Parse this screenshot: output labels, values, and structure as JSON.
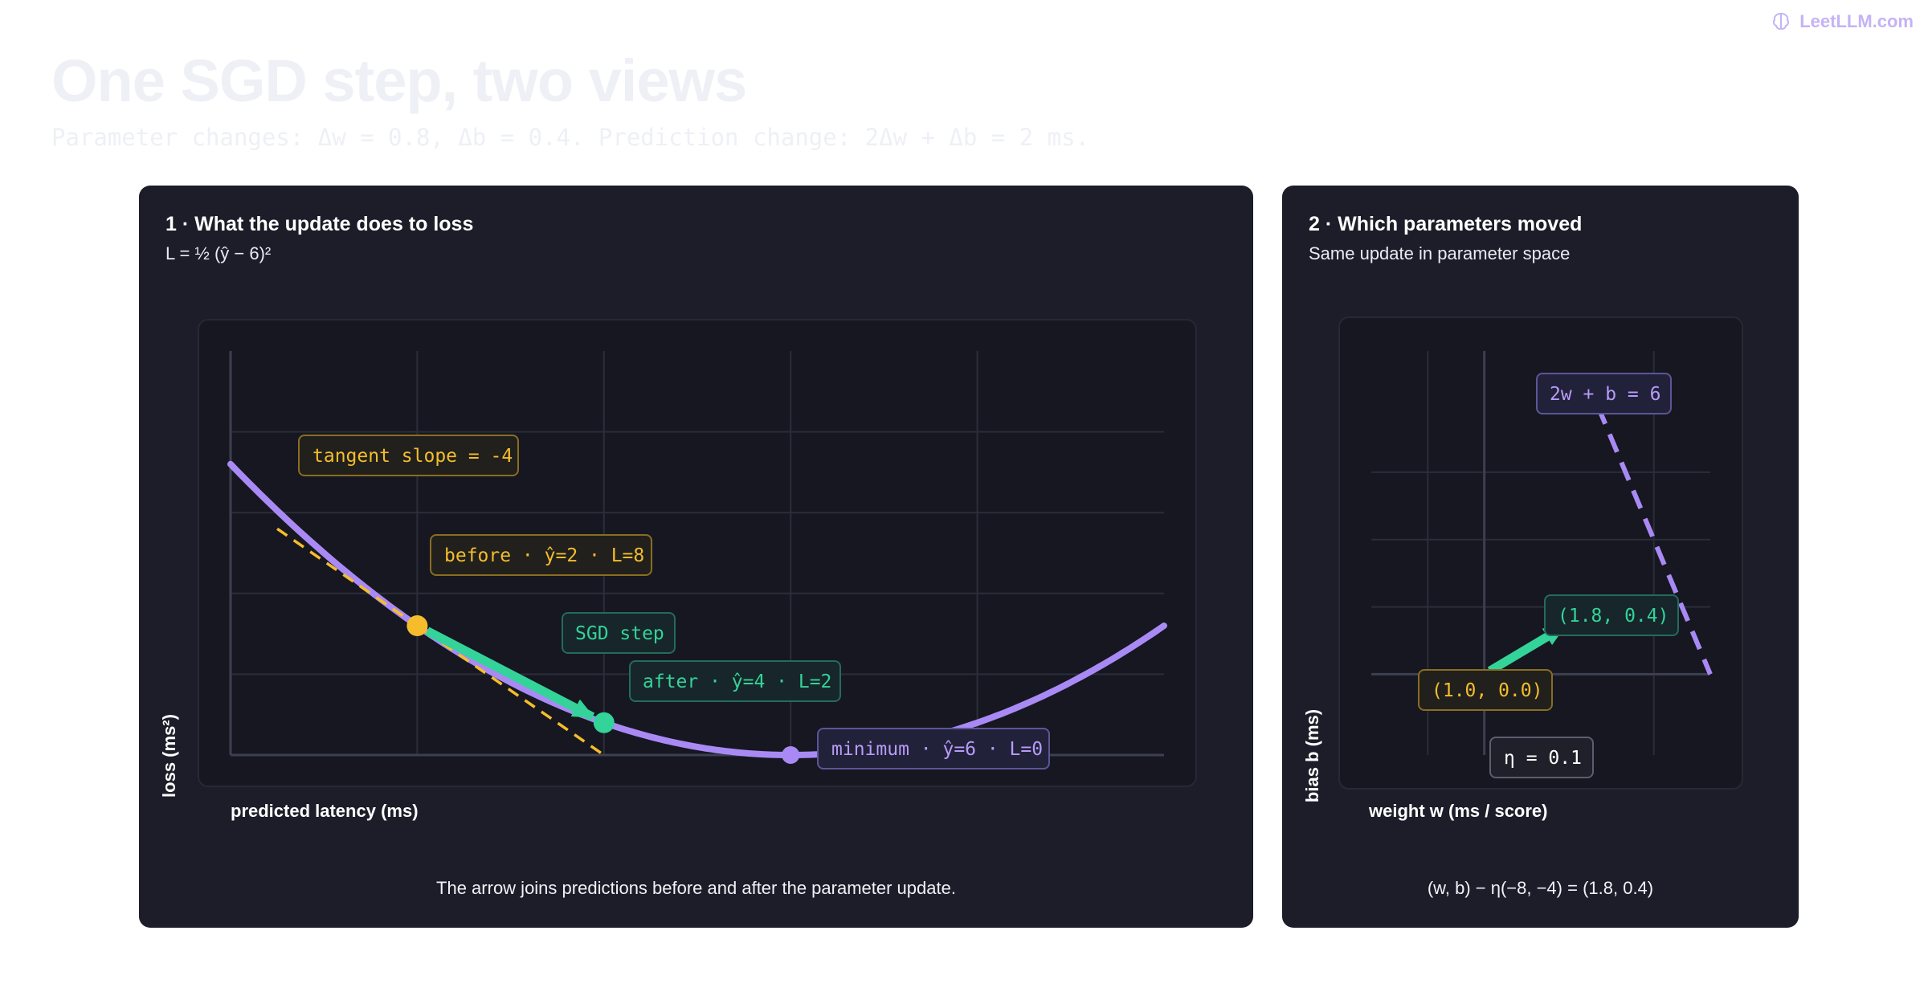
{
  "brand": {
    "text": "LeetLLM.com",
    "icon": "brain-icon",
    "color": "#c5b3f6"
  },
  "title": "One SGD step, two views",
  "subtitle": "Parameter changes: Δw = 0.8, Δb = 0.4. Prediction change: 2Δw + Δb = 2 ms.",
  "colors": {
    "curve": "#a98af5",
    "tangent": "#f5bd2c",
    "step": "#34d399",
    "panel": "#1c1d28",
    "plot_bg": "#161720",
    "grid": "#2a2d3b"
  },
  "panel_loss": {
    "title": "1 · What the update does to loss",
    "formula": "L = ½ (ŷ − 6)²",
    "xlabel": "predicted latency (ms)",
    "ylabel": "loss (ms²)",
    "caption": "The arrow joins predictions before and after the parameter update.",
    "labels": {
      "tangent": "tangent slope = -4",
      "before": "before · ŷ=2 · L=8",
      "step": "SGD step",
      "after": "after · ŷ=4 · L=2",
      "minimum": "minimum · ŷ=6 · L=0"
    }
  },
  "panel_params": {
    "title": "2 · Which parameters moved",
    "subtitle": "Same update in parameter space",
    "xlabel": "weight w (ms / score)",
    "ylabel": "bias b (ms)",
    "caption": "(w, b) − η(−8, −4) = (1.8, 0.4)",
    "labels": {
      "line": "2w + b = 6",
      "start": "(1.0, 0.0)",
      "end": "(1.8, 0.4)",
      "lr": "η = 0.1"
    }
  },
  "chart_data": [
    {
      "type": "line",
      "x_range": [
        0,
        10
      ],
      "y_range": [
        0,
        25
      ],
      "curve": {
        "formula": "L = 0.5*(x-6)^2",
        "x_from": 0,
        "x_to": 10
      },
      "tangent": {
        "at_x": 2,
        "slope": -4,
        "x_from": 0.5,
        "x_to": 4
      },
      "points": [
        {
          "name": "before",
          "x": 2,
          "y": 8
        },
        {
          "name": "after",
          "x": 4,
          "y": 2
        },
        {
          "name": "minimum",
          "x": 6,
          "y": 0
        }
      ]
    },
    {
      "type": "line",
      "x_range": [
        0,
        3
      ],
      "y_range": [
        -0.6,
        2.4
      ],
      "line": {
        "formula": "b = 6 - 2w",
        "w_from": 1.9,
        "w_to": 3.0
      },
      "points": [
        {
          "name": "start",
          "x": 1.0,
          "y": 0.0
        },
        {
          "name": "end",
          "x": 1.8,
          "y": 0.4
        }
      ]
    }
  ]
}
